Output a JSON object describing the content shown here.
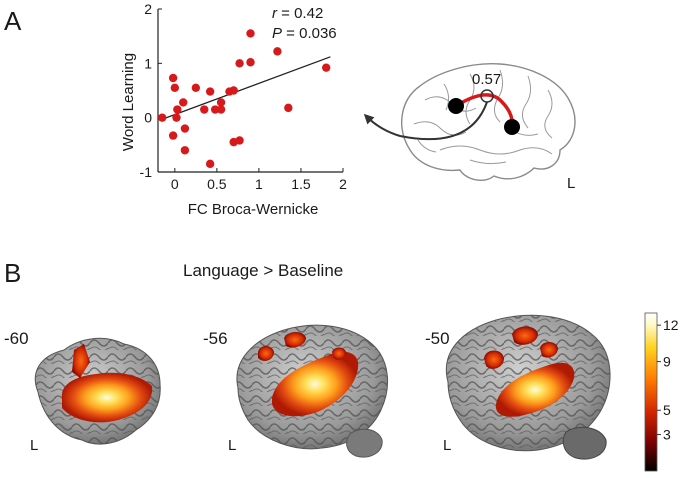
{
  "panels": {
    "a": {
      "letter": "A"
    },
    "b": {
      "letter": "B",
      "title": "Language > Baseline"
    }
  },
  "chart_data": [
    {
      "type": "scatter",
      "xlabel": "FC Broca-Wernicke",
      "ylabel": "Word Learning",
      "xlim": [
        -0.2,
        2
      ],
      "ylim": [
        -1,
        2
      ],
      "xticks": [
        0,
        0.5,
        1,
        1.5,
        2
      ],
      "xtick_labels": [
        "0",
        "0.5",
        "1",
        "1.5",
        "2"
      ],
      "yticks": [
        -1,
        0,
        1,
        2
      ],
      "ytick_labels": [
        "-1",
        "0",
        "1",
        "2"
      ],
      "grid": false,
      "point_color": "#d7191c",
      "annotation_r_label": "r",
      "annotation_r_value": " = 0.42",
      "annotation_p_label": "P",
      "annotation_p_value": " = 0.036",
      "points": [
        {
          "x": -0.15,
          "y": 0.0
        },
        {
          "x": -0.02,
          "y": 0.73
        },
        {
          "x": -0.02,
          "y": -0.33
        },
        {
          "x": 0.0,
          "y": 0.55
        },
        {
          "x": 0.03,
          "y": 0.15
        },
        {
          "x": 0.02,
          "y": 0.0
        },
        {
          "x": 0.1,
          "y": 0.28
        },
        {
          "x": 0.12,
          "y": -0.2
        },
        {
          "x": 0.12,
          "y": -0.6
        },
        {
          "x": 0.25,
          "y": 0.55
        },
        {
          "x": 0.35,
          "y": 0.15
        },
        {
          "x": 0.42,
          "y": 0.48
        },
        {
          "x": 0.42,
          "y": -0.85
        },
        {
          "x": 0.48,
          "y": 0.15
        },
        {
          "x": 0.55,
          "y": 0.15
        },
        {
          "x": 0.55,
          "y": 0.28
        },
        {
          "x": 0.65,
          "y": 0.48
        },
        {
          "x": 0.7,
          "y": 0.5
        },
        {
          "x": 0.7,
          "y": -0.45
        },
        {
          "x": 0.77,
          "y": -0.42
        },
        {
          "x": 0.77,
          "y": 1.0
        },
        {
          "x": 0.9,
          "y": 1.02
        },
        {
          "x": 0.9,
          "y": 1.55
        },
        {
          "x": 1.22,
          "y": 1.22
        },
        {
          "x": 1.35,
          "y": 0.18
        },
        {
          "x": 1.8,
          "y": 0.92
        }
      ],
      "fit_line": {
        "x": [
          -0.15,
          1.85
        ],
        "y": [
          -0.03,
          1.12
        ]
      }
    },
    {
      "type": "heatmap",
      "colorbar_ticks": [
        3,
        5,
        9,
        12
      ],
      "colorbar_tick_labels": [
        "3",
        "5",
        "9",
        "12"
      ],
      "colorbar_range": [
        0,
        13
      ],
      "colormap": [
        "#000000",
        "#7a0000",
        "#d42800",
        "#ff7a00",
        "#ffd21e",
        "#fff8c0",
        "#ffffff"
      ]
    }
  ],
  "brain_top": {
    "fc_value": "0.57",
    "hemisphere": "L",
    "node_color": "#000000",
    "connection_color": "#d7191c"
  },
  "slices": [
    {
      "coordinate": "-60",
      "hemisphere": "L"
    },
    {
      "coordinate": "-56",
      "hemisphere": "L"
    },
    {
      "coordinate": "-50",
      "hemisphere": "L"
    }
  ]
}
